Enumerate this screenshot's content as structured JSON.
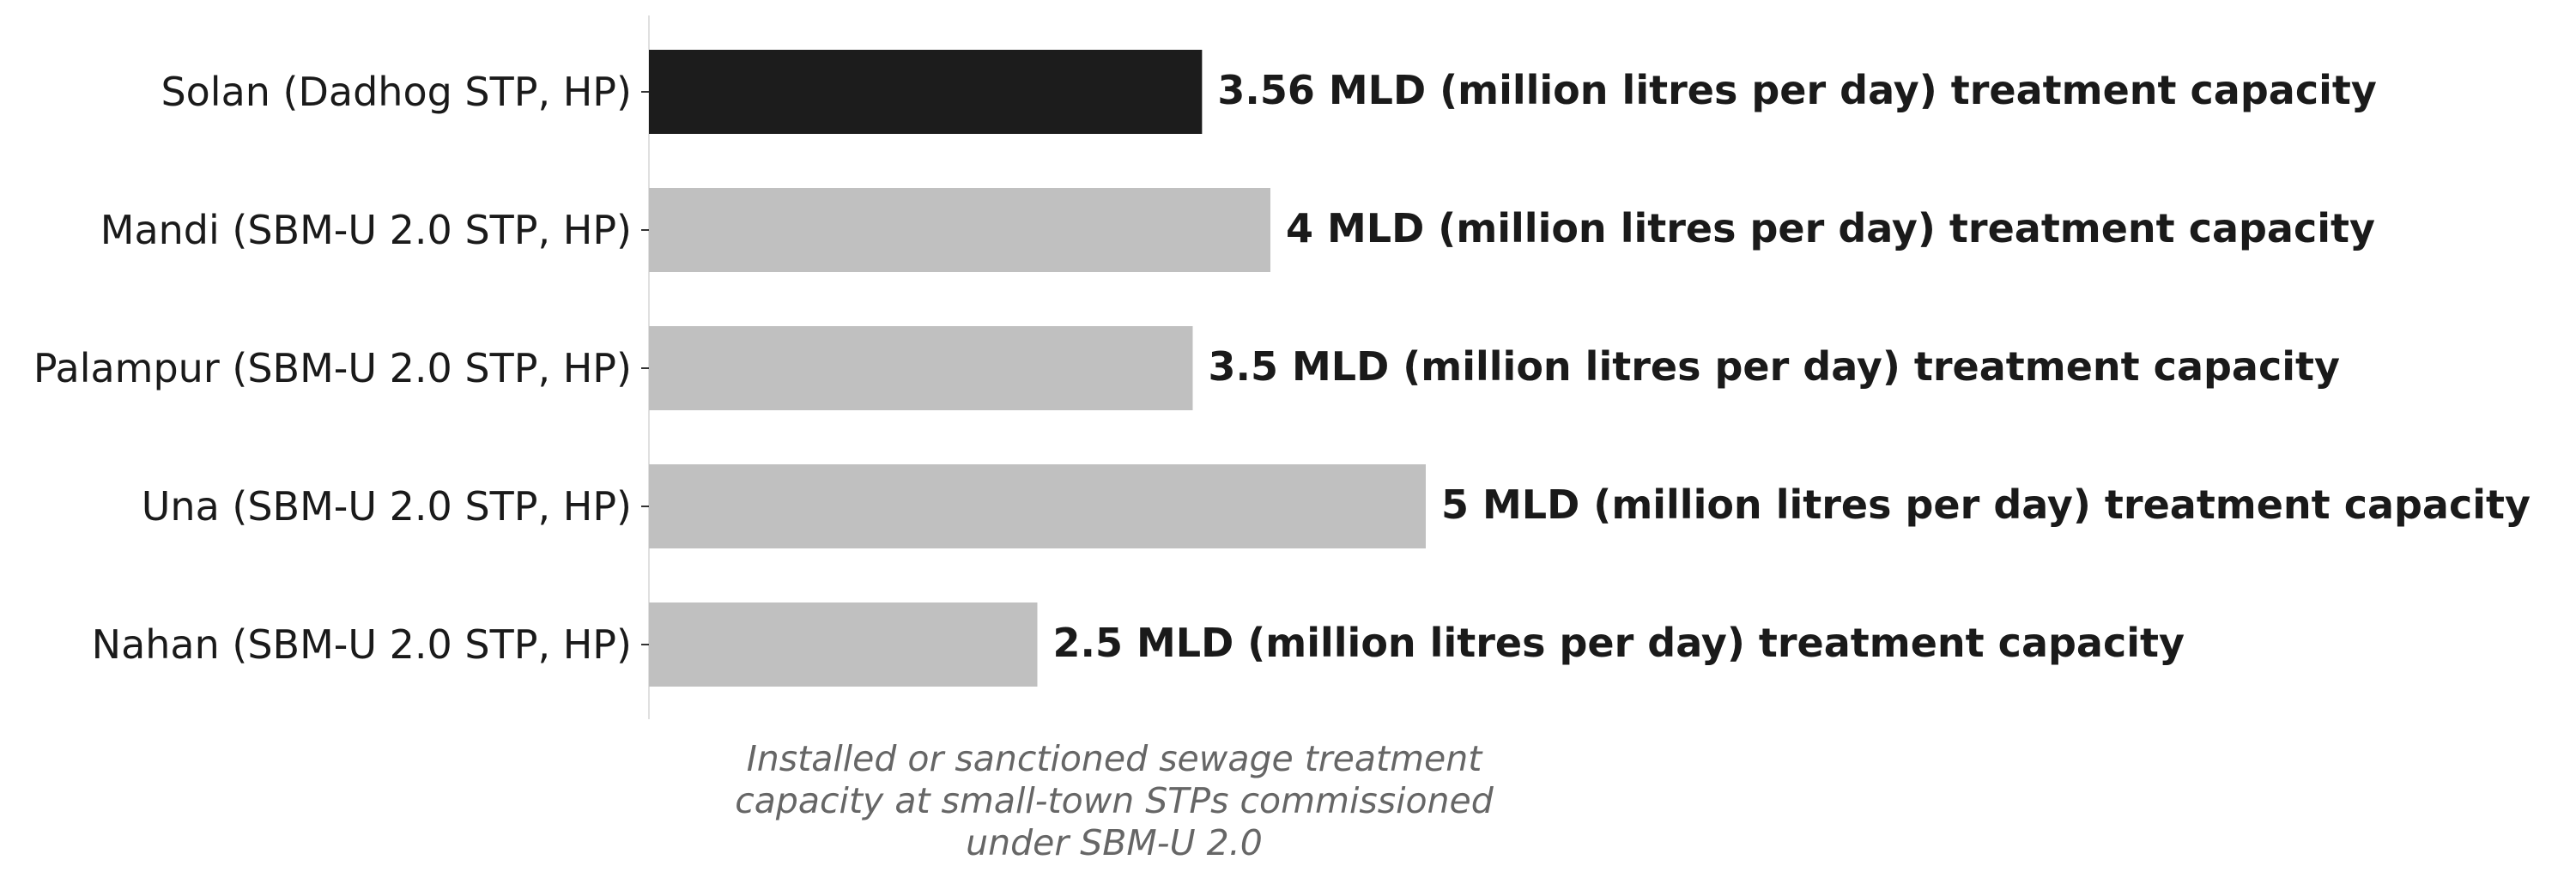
{
  "chart_data": {
    "type": "bar",
    "orientation": "horizontal",
    "categories": [
      "Solan (Dadhog STP, HP)",
      "Mandi (SBM-U 2.0 STP, HP)",
      "Palampur (SBM-U 2.0 STP, HP)",
      "Una (SBM-U 2.0 STP, HP)",
      "Nahan (SBM-U 2.0 STP, HP)"
    ],
    "values": [
      3.56,
      4,
      3.5,
      5,
      2.5
    ],
    "data_labels": [
      "3.56 MLD (million litres per day) treatment capacity",
      "4 MLD (million litres per day) treatment capacity",
      "3.5 MLD (million litres per day) treatment capacity",
      "5 MLD (million litres per day) treatment capacity",
      "2.5 MLD (million litres per day) treatment capacity"
    ],
    "highlight_index": 0,
    "xlabel_lines": [
      "Installed or sanctioned sewage treatment",
      "capacity at small-town STPs commissioned",
      "under SBM-U 2.0"
    ],
    "title": "",
    "ylabel": "",
    "xlim": [
      0,
      5
    ],
    "grid": false,
    "legend": "none",
    "colors": {
      "highlight": "#1c1c1c",
      "default": "#c0c0c0",
      "text": "#1a1a1a",
      "axis_label": "#666666",
      "axis_line": "#e0e0e0"
    }
  }
}
